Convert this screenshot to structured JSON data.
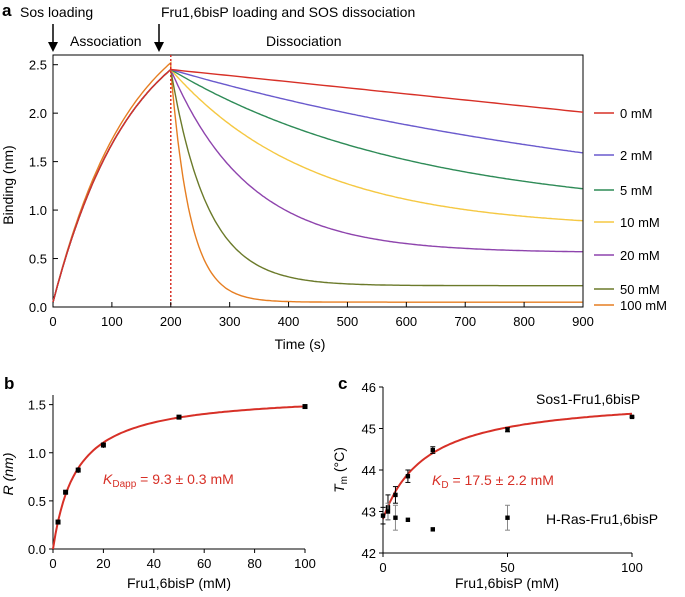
{
  "chart_data": [
    {
      "panel": "a",
      "type": "line",
      "xlabel": "Time (s)",
      "ylabel": "Binding (nm)",
      "xlim": [
        0,
        900
      ],
      "ylim": [
        0,
        2.6
      ],
      "xticks": [
        0,
        100,
        200,
        300,
        400,
        500,
        600,
        700,
        800,
        900
      ],
      "yticks": [
        0.0,
        0.5,
        1.0,
        1.5,
        2.0,
        2.5
      ],
      "ytick_labels": [
        "0.0",
        "0.5",
        "1.0",
        "1.5",
        "2.0",
        "2.5"
      ],
      "grid": false,
      "legend_position": "right",
      "annotations": {
        "sos_loading": "Sos loading",
        "fru_loading": "Fru1,6bisP loading and SOS dissociation",
        "association": "Association",
        "dissociation": "Dissociation"
      },
      "phase_boundary_x": 200,
      "series": [
        {
          "name": "0 mM",
          "color": "#d73027",
          "assoc_end": 2.45,
          "end": 2.01,
          "curve": "linear"
        },
        {
          "name": "2 mM",
          "color": "#6a5acd",
          "assoc_end": 2.45,
          "end": 1.59,
          "k": 0.0011
        },
        {
          "name": "5 mM",
          "color": "#2e8b57",
          "assoc_end": 2.45,
          "end": 1.22,
          "k": 0.0024
        },
        {
          "name": "10 mM",
          "color": "#f5c842",
          "assoc_end": 2.45,
          "end": 0.89,
          "k": 0.0042
        },
        {
          "name": "20 mM",
          "color": "#8e44ad",
          "assoc_end": 2.45,
          "end": 0.57,
          "k": 0.0075
        },
        {
          "name": "50 mM",
          "color": "#6b7a2a",
          "assoc_end": 2.45,
          "end": 0.22,
          "k": 0.016
        },
        {
          "name": "100 mM",
          "color": "#e67e22",
          "assoc_end": 2.52,
          "end": 0.05,
          "k": 0.03
        }
      ]
    },
    {
      "panel": "b",
      "type": "scatter",
      "xlabel": "Fru1,6bisP (mM)",
      "ylabel": "R (nm)",
      "xlim": [
        0,
        100
      ],
      "ylim": [
        0,
        1.6
      ],
      "xticks": [
        0,
        20,
        40,
        60,
        80,
        100
      ],
      "yticks": [
        0.0,
        0.5,
        1.0,
        1.5
      ],
      "ytick_labels": [
        "0.0",
        "0.5",
        "1.0",
        "1.5"
      ],
      "x": [
        2,
        5,
        10,
        20,
        50,
        100
      ],
      "values": [
        0.28,
        0.59,
        0.82,
        1.08,
        1.37,
        1.48
      ],
      "errors": [
        0.02,
        0.02,
        0.03,
        0.03,
        0.02,
        0.02
      ],
      "fit": {
        "type": "hyperbolic",
        "bmax": 1.62,
        "kd": 9.3,
        "color": "#d73027"
      },
      "annotation": {
        "k_prefix": "K",
        "k_sub": "Dapp",
        "rest": " = 9.3 ± 0.3 mM"
      }
    },
    {
      "panel": "c",
      "type": "scatter",
      "xlabel": "Fru1,6bisP (mM)",
      "ylabel_main": "T",
      "ylabel_sub": "m",
      "ylabel_unit": " (°C)",
      "xlim": [
        0,
        100
      ],
      "ylim": [
        42,
        46
      ],
      "xticks": [
        0,
        50,
        100
      ],
      "yticks": [
        42,
        43,
        44,
        45,
        46
      ],
      "ytick_labels": [
        "42",
        "43",
        "44",
        "45",
        "46"
      ],
      "series": [
        {
          "name": "Sos1-Fru1,6bisP",
          "x": [
            0,
            2,
            5,
            10,
            20,
            50,
            100
          ],
          "values": [
            42.9,
            43.1,
            43.4,
            43.85,
            44.48,
            44.97,
            45.28
          ],
          "errors": [
            0.2,
            0.3,
            0.2,
            0.15,
            0.08,
            0.05,
            0.02
          ]
        },
        {
          "name": "H-Ras-Fru1,6bisP",
          "x": [
            2,
            5,
            10,
            20,
            50
          ],
          "values": [
            43.0,
            42.85,
            42.8,
            42.57,
            42.85
          ],
          "errors": [
            0.2,
            0.3,
            0.0,
            0.0,
            0.3
          ]
        }
      ],
      "fit": {
        "type": "hyperbolic",
        "t0": 42.82,
        "dmax": 2.98,
        "kd": 17.5,
        "color": "#d73027"
      },
      "annotation": {
        "k_prefix": "K",
        "k_sub": "D",
        "rest": " = 17.5 ± 2.2 mM"
      }
    }
  ],
  "panel_labels": [
    "a",
    "b",
    "c"
  ]
}
